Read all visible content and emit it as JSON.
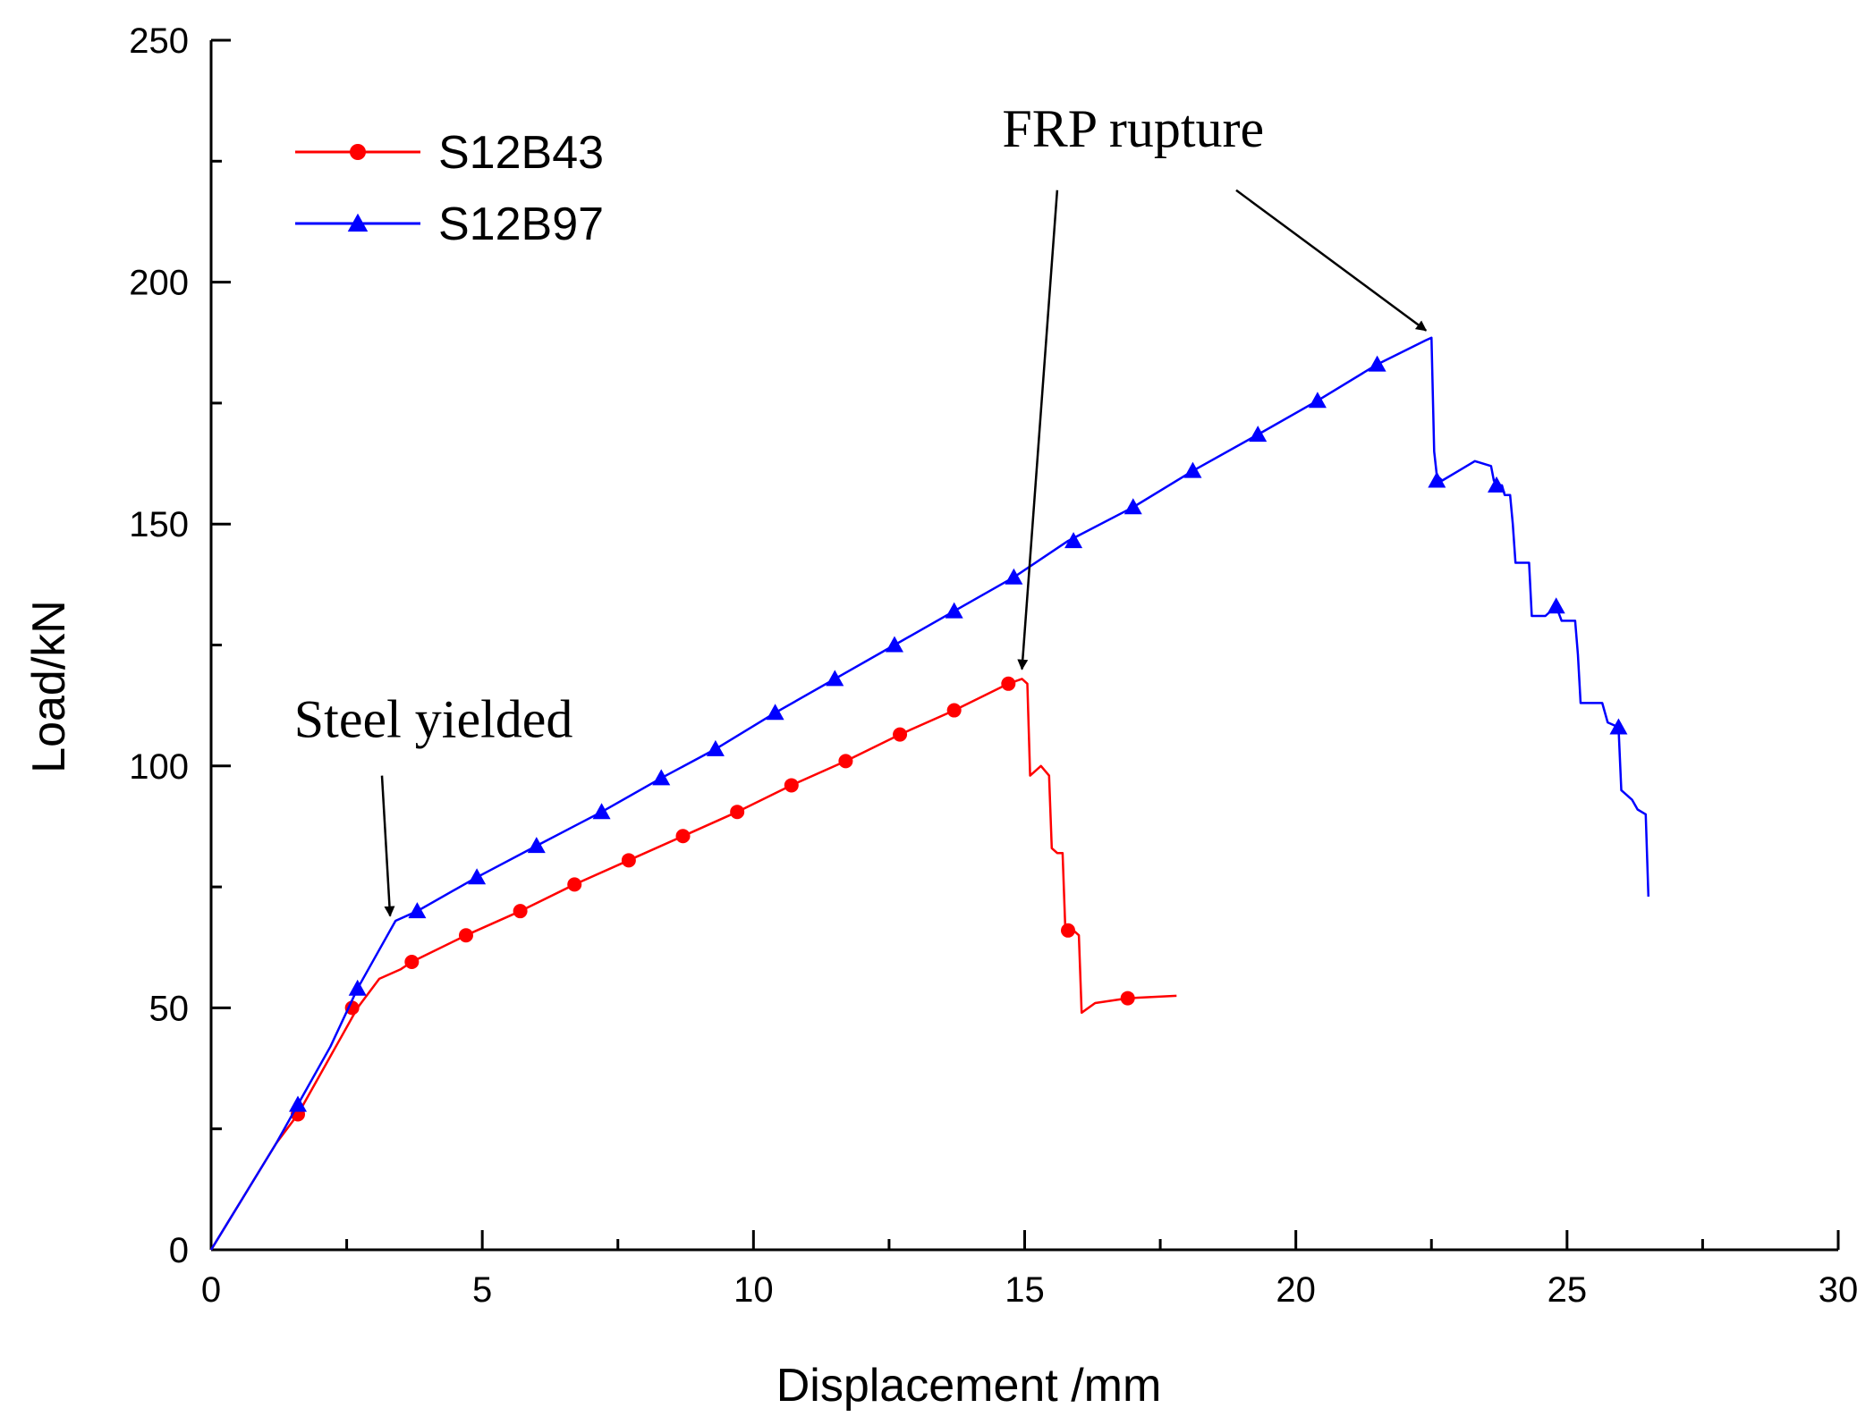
{
  "chart_data": {
    "type": "line",
    "title": "",
    "xlabel": "Displacement /mm",
    "ylabel": "Load/kN",
    "xlim": [
      0,
      30
    ],
    "ylim": [
      0,
      250
    ],
    "xticks": [
      0,
      5,
      10,
      15,
      20,
      25,
      30
    ],
    "yticks": [
      0,
      50,
      100,
      150,
      200,
      250
    ],
    "x_minor_step": 2.5,
    "y_minor_step": 25,
    "grid": false,
    "legend_position": "top-left",
    "series": [
      {
        "name": "S12B43",
        "color": "#ff0000",
        "marker": "circle",
        "points": [
          [
            0,
            0
          ],
          [
            0.6,
            11
          ],
          [
            1.2,
            22
          ],
          [
            1.6,
            28
          ],
          [
            2.2,
            40
          ],
          [
            2.7,
            50
          ],
          [
            3.1,
            56
          ],
          [
            3.5,
            58
          ],
          [
            3.7,
            59.5
          ],
          [
            4.7,
            65
          ],
          [
            5.7,
            70
          ],
          [
            6.7,
            75.5
          ],
          [
            7.7,
            80.5
          ],
          [
            8.7,
            85.5
          ],
          [
            9.7,
            90.5
          ],
          [
            10.7,
            96
          ],
          [
            11.7,
            101
          ],
          [
            12.7,
            106.5
          ],
          [
            13.7,
            111.5
          ],
          [
            14.7,
            117
          ],
          [
            14.95,
            118
          ],
          [
            15.05,
            117
          ],
          [
            15.1,
            98
          ],
          [
            15.3,
            100
          ],
          [
            15.45,
            98
          ],
          [
            15.5,
            83
          ],
          [
            15.6,
            82
          ],
          [
            15.7,
            82
          ],
          [
            15.75,
            66
          ],
          [
            15.9,
            66
          ],
          [
            16.0,
            65
          ],
          [
            16.05,
            49
          ],
          [
            16.3,
            51
          ],
          [
            16.9,
            52
          ],
          [
            17.8,
            52.5
          ]
        ],
        "marker_points": [
          [
            1.6,
            28
          ],
          [
            2.6,
            50
          ],
          [
            3.7,
            59.5
          ],
          [
            4.7,
            65
          ],
          [
            5.7,
            70
          ],
          [
            6.7,
            75.5
          ],
          [
            7.7,
            80.5
          ],
          [
            8.7,
            85.5
          ],
          [
            9.7,
            90.5
          ],
          [
            10.7,
            96
          ],
          [
            11.7,
            101
          ],
          [
            12.7,
            106.5
          ],
          [
            13.7,
            111.5
          ],
          [
            14.7,
            117
          ],
          [
            15.8,
            66
          ],
          [
            16.9,
            52
          ]
        ]
      },
      {
        "name": "S12B97",
        "color": "#0000ff",
        "marker": "triangle",
        "points": [
          [
            0,
            0
          ],
          [
            0.6,
            11
          ],
          [
            1.2,
            22
          ],
          [
            1.6,
            30
          ],
          [
            2.2,
            42
          ],
          [
            2.7,
            54
          ],
          [
            3.0,
            60
          ],
          [
            3.4,
            68
          ],
          [
            3.8,
            70
          ],
          [
            4.9,
            77
          ],
          [
            6.0,
            83.5
          ],
          [
            7.2,
            90.5
          ],
          [
            8.3,
            97.5
          ],
          [
            9.3,
            103.5
          ],
          [
            10.4,
            111
          ],
          [
            11.5,
            118
          ],
          [
            12.6,
            125
          ],
          [
            13.7,
            132
          ],
          [
            14.8,
            139
          ],
          [
            15.8,
            146.5
          ],
          [
            17.0,
            153.5
          ],
          [
            18.1,
            161
          ],
          [
            19.3,
            168.5
          ],
          [
            20.4,
            175.5
          ],
          [
            21.5,
            183
          ],
          [
            22.4,
            188
          ],
          [
            22.5,
            188.5
          ],
          [
            22.55,
            165
          ],
          [
            22.6,
            160
          ],
          [
            22.7,
            159
          ],
          [
            23.0,
            161
          ],
          [
            23.3,
            163
          ],
          [
            23.6,
            162
          ],
          [
            23.65,
            159
          ],
          [
            23.7,
            158
          ],
          [
            23.8,
            158
          ],
          [
            23.85,
            156
          ],
          [
            23.95,
            156
          ],
          [
            24.0,
            150
          ],
          [
            24.05,
            142
          ],
          [
            24.3,
            142
          ],
          [
            24.35,
            131
          ],
          [
            24.6,
            131
          ],
          [
            24.8,
            133
          ],
          [
            24.9,
            130
          ],
          [
            25.15,
            130
          ],
          [
            25.2,
            123
          ],
          [
            25.25,
            113
          ],
          [
            25.4,
            113
          ],
          [
            25.65,
            113
          ],
          [
            25.75,
            109
          ],
          [
            25.95,
            108
          ],
          [
            26.0,
            95
          ],
          [
            26.2,
            93
          ],
          [
            26.3,
            91
          ],
          [
            26.45,
            90
          ],
          [
            26.5,
            73
          ]
        ],
        "marker_points": [
          [
            1.6,
            30
          ],
          [
            2.7,
            54
          ],
          [
            3.8,
            70
          ],
          [
            4.9,
            77
          ],
          [
            6.0,
            83.5
          ],
          [
            7.2,
            90.5
          ],
          [
            8.3,
            97.5
          ],
          [
            9.3,
            103.5
          ],
          [
            10.4,
            111
          ],
          [
            11.5,
            118
          ],
          [
            12.6,
            125
          ],
          [
            13.7,
            132
          ],
          [
            14.8,
            139
          ],
          [
            15.9,
            146.5
          ],
          [
            17.0,
            153.5
          ],
          [
            18.1,
            161
          ],
          [
            19.3,
            168.5
          ],
          [
            20.4,
            175.5
          ],
          [
            21.5,
            183
          ],
          [
            22.6,
            159
          ],
          [
            23.7,
            158
          ],
          [
            24.8,
            133
          ],
          [
            25.95,
            108
          ]
        ]
      }
    ],
    "annotations": [
      {
        "text": "FRP rupture",
        "label_at": [
          17.0,
          228
        ],
        "arrows": [
          {
            "from": [
              15.6,
              219
            ],
            "to": [
              14.95,
              120
            ]
          },
          {
            "from": [
              18.9,
              219
            ],
            "to": [
              22.4,
              190
            ]
          }
        ]
      },
      {
        "text": "Steel yielded",
        "label_at": [
          4.1,
          106
        ],
        "arrows": [
          {
            "from": [
              3.15,
              98
            ],
            "to": [
              3.3,
              69
            ]
          }
        ]
      }
    ]
  }
}
